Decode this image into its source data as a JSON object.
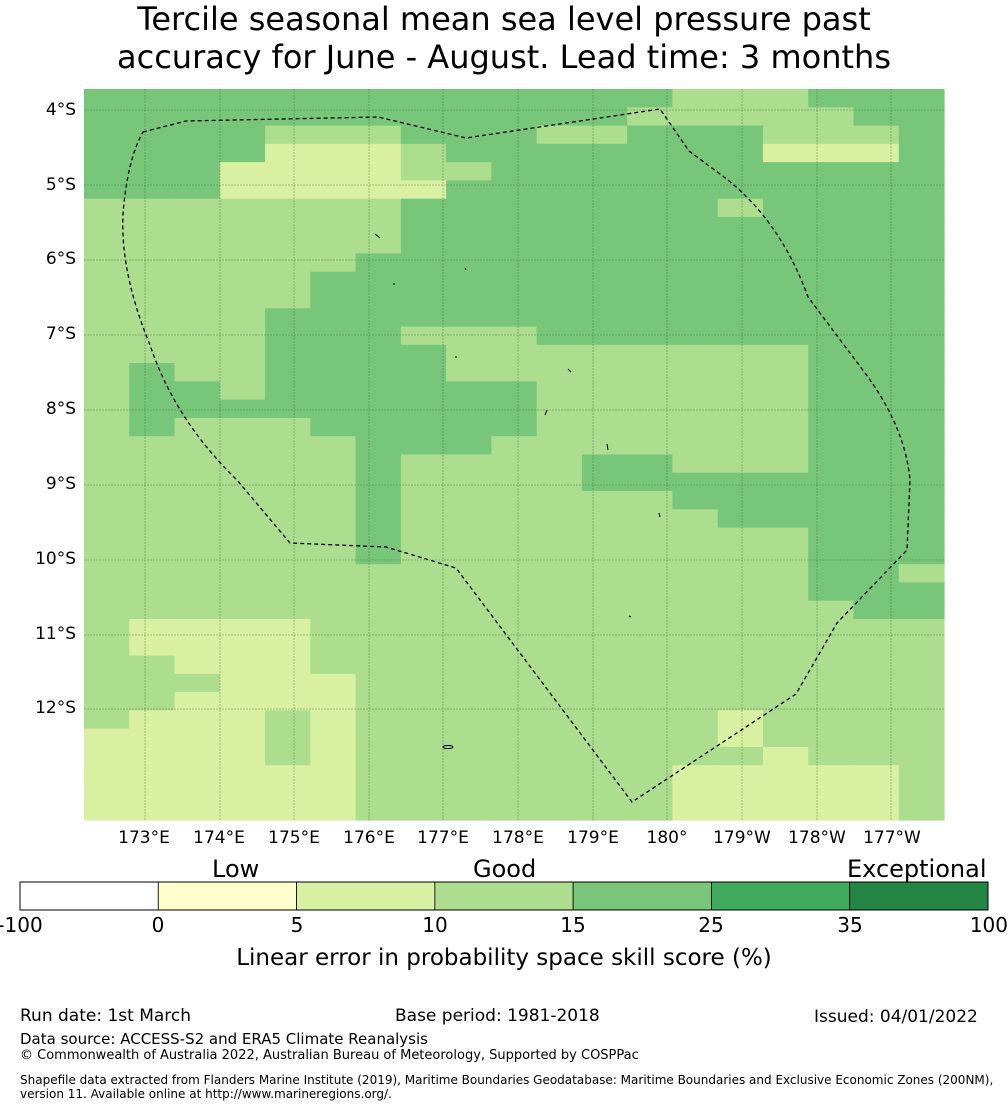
{
  "title": {
    "line1": "Tercile seasonal mean sea level pressure past",
    "line2": "accuracy for June - August. Lead time: 3 months"
  },
  "map": {
    "lat_labels": [
      "4°S",
      "5°S",
      "6°S",
      "7°S",
      "8°S",
      "9°S",
      "10°S",
      "11°S",
      "12°S"
    ],
    "lon_labels": [
      "173°E",
      "174°E",
      "175°E",
      "176°E",
      "177°E",
      "178°E",
      "179°E",
      "180°",
      "179°W",
      "178°W",
      "177°W"
    ],
    "colors": [
      "#d9f0a3",
      "#addd8e",
      "#78c679"
    ],
    "grid_codes": [
      "2222222222222111222",
      "2222222222221111122",
      "2222111222112221112",
      "2222000122222220002",
      "2220000112222222222",
      "2220000022222222222",
      "1111111222222212222",
      "1111111222222222222",
      "1111111222222222222",
      "1111112222222222222",
      "1111122222222222222",
      "1111122222222222222",
      "1111222222222222222",
      "1111222111222222222",
      "1111222211111111222",
      "1211222211111111222",
      "1221222222111111222",
      "1222222222111111222",
      "1211122222111111222",
      "1111112221111111222",
      "1111112111122111222",
      "1111112111122222222",
      "1111112111111222222",
      "1111112111111122222",
      "1111112111111111222",
      "1111112111111111222",
      "1111111111111111221",
      "1111111111111111222",
      "1111111111111111122",
      "1000011111111111111",
      "1000011111111111111",
      "1100011111111111111",
      "1110001111111111111",
      "1100001111111111111",
      "1000101111111101111",
      "0000101111111101111",
      "0000101111111110111",
      "0000001111111000001",
      "0000001111111000001",
      "0000001111111000001"
    ]
  },
  "colorbar": {
    "categories": [
      "Low",
      "Good",
      "Exceptional"
    ],
    "ticks": [
      "-100",
      "0",
      "5",
      "10",
      "15",
      "25",
      "35",
      "100"
    ],
    "colors": [
      "#ffffff",
      "#ffffcc",
      "#d9f0a3",
      "#addd8e",
      "#78c679",
      "#41ab5d",
      "#238443"
    ],
    "label": "Linear error in probability space skill score (%)"
  },
  "footer": {
    "run_date": "Run date: 1st March",
    "base_period": "Base period: 1981-2018",
    "issued": "Issued: 04/01/2022",
    "data_source": "Data source: ACCESS-S2 and ERA5 Climate Reanalysis",
    "copyright": "© Commonwealth of Australia 2022, Australian Bureau of Meteorology, Supported by COSPPac",
    "shapefile_line1": "Shapefile data extracted from Flanders Marine Institute (2019), Maritime Boundaries Geodatabase: Maritime Boundaries and Exclusive Economic Zones (200NM),",
    "shapefile_line2": "version 11. Available online at http://www.marineregions.org/."
  }
}
